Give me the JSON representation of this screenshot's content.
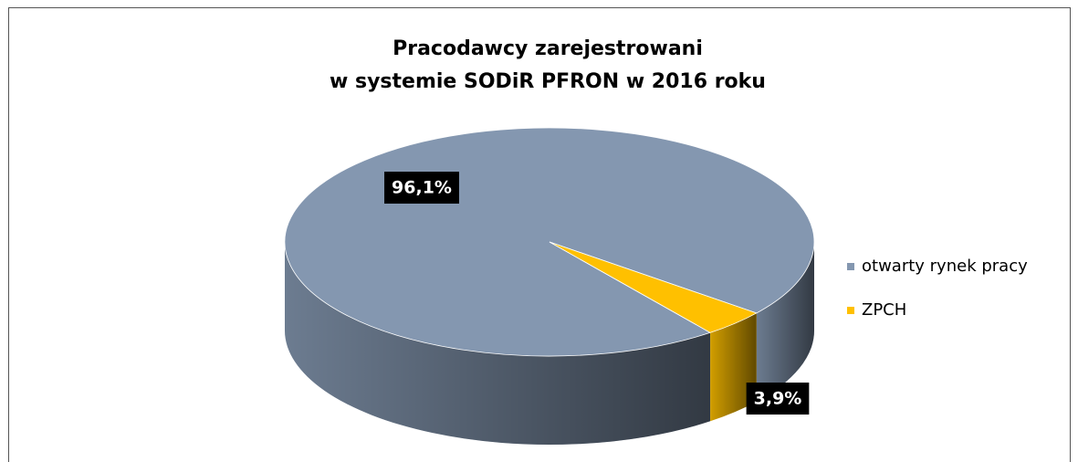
{
  "chart_data": {
    "type": "pie",
    "title": "Pracodawcy zarejestrowani\nw systemie SODiR PFRON w 2016 roku",
    "categories": [
      "otwarty rynek pracy",
      "ZPCH"
    ],
    "values": [
      96.1,
      3.9
    ],
    "value_labels": [
      "96,1%",
      "3,9%"
    ],
    "colors": [
      "#8497b0",
      "#ffc000"
    ],
    "legend": "right"
  }
}
